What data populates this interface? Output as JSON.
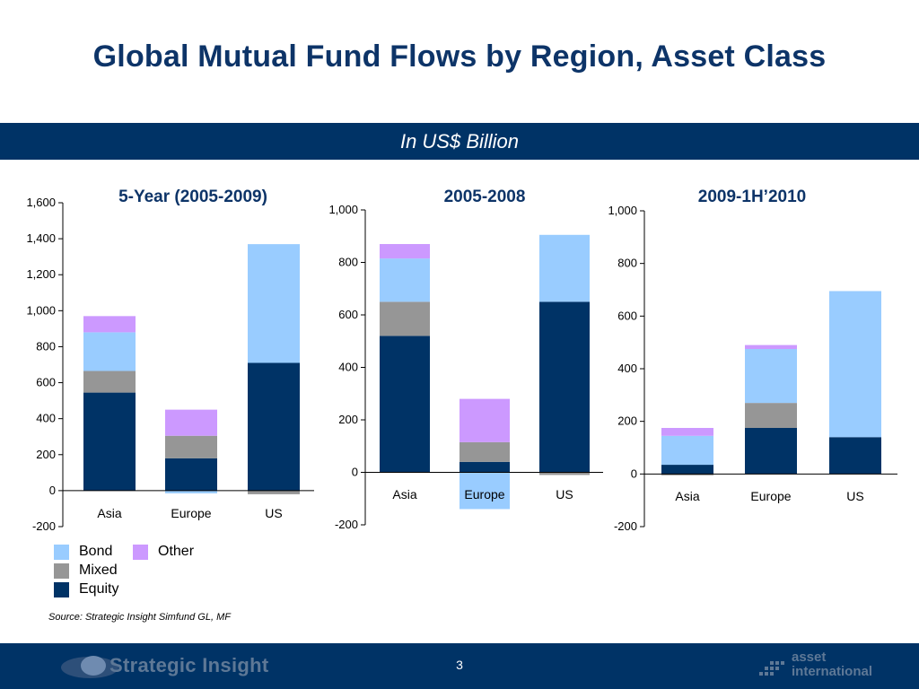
{
  "title": "Global Mutual Fund Flows by Region, Asset Class",
  "subtitle_banner": "In US$ Billion",
  "source": "Source: Strategic Insight Simfund GL, MF",
  "page_number": "3",
  "footer": {
    "left_logo_text": "Strategic Insight",
    "right_logo_text_line1": "asset",
    "right_logo_text_line2": "international"
  },
  "colors": {
    "title": "#0d3468",
    "banner": "#003366",
    "Bond": "#99ccff",
    "Mixed": "#969696",
    "Equity": "#003366",
    "Other": "#cc99ff"
  },
  "legend": [
    {
      "name": "Bond",
      "color": "#99ccff"
    },
    {
      "name": "Other",
      "color": "#cc99ff"
    },
    {
      "name": "Mixed",
      "color": "#969696"
    },
    {
      "name": "Equity",
      "color": "#003366"
    }
  ],
  "chart_data": [
    {
      "type": "bar",
      "stacked": true,
      "title": "5-Year (2005-2009)",
      "categories": [
        "Asia",
        "Europe",
        "US"
      ],
      "ylim": [
        -200,
        1600
      ],
      "yticks": [
        -200,
        0,
        200,
        400,
        600,
        800,
        1000,
        1200,
        1400,
        1600
      ],
      "ytick_labels": [
        "-200",
        "0",
        "200",
        "400",
        "600",
        "800",
        "1,000",
        "1,200",
        "1,400",
        "1,600"
      ],
      "series": [
        {
          "name": "Equity",
          "values": [
            545,
            180,
            710
          ]
        },
        {
          "name": "Mixed",
          "values": [
            120,
            125,
            -20
          ]
        },
        {
          "name": "Bond",
          "values": [
            215,
            -15,
            660
          ]
        },
        {
          "name": "Other",
          "values": [
            90,
            145,
            0
          ]
        }
      ]
    },
    {
      "type": "bar",
      "stacked": true,
      "title": "2005-2008",
      "categories": [
        "Asia",
        "Europe",
        "US"
      ],
      "ylim": [
        -200,
        1000
      ],
      "yticks": [
        -200,
        0,
        200,
        400,
        600,
        800,
        1000
      ],
      "ytick_labels": [
        "-200",
        "0",
        "200",
        "400",
        "600",
        "800",
        "1,000"
      ],
      "series": [
        {
          "name": "Equity",
          "values": [
            520,
            40,
            650
          ]
        },
        {
          "name": "Mixed",
          "values": [
            130,
            75,
            -10
          ]
        },
        {
          "name": "Bond",
          "values": [
            165,
            -140,
            255
          ]
        },
        {
          "name": "Other",
          "values": [
            55,
            165,
            0
          ]
        }
      ]
    },
    {
      "type": "bar",
      "stacked": true,
      "title": "2009-1H’2010",
      "categories": [
        "Asia",
        "Europe",
        "US"
      ],
      "ylim": [
        -200,
        1000
      ],
      "yticks": [
        -200,
        0,
        200,
        400,
        600,
        800,
        1000
      ],
      "ytick_labels": [
        "-200",
        "0",
        "200",
        "400",
        "600",
        "800",
        "1,000"
      ],
      "series": [
        {
          "name": "Equity",
          "values": [
            35,
            175,
            140
          ]
        },
        {
          "name": "Mixed",
          "values": [
            -5,
            95,
            0
          ]
        },
        {
          "name": "Bond",
          "values": [
            110,
            205,
            555
          ]
        },
        {
          "name": "Other",
          "values": [
            30,
            15,
            0
          ]
        }
      ]
    }
  ]
}
